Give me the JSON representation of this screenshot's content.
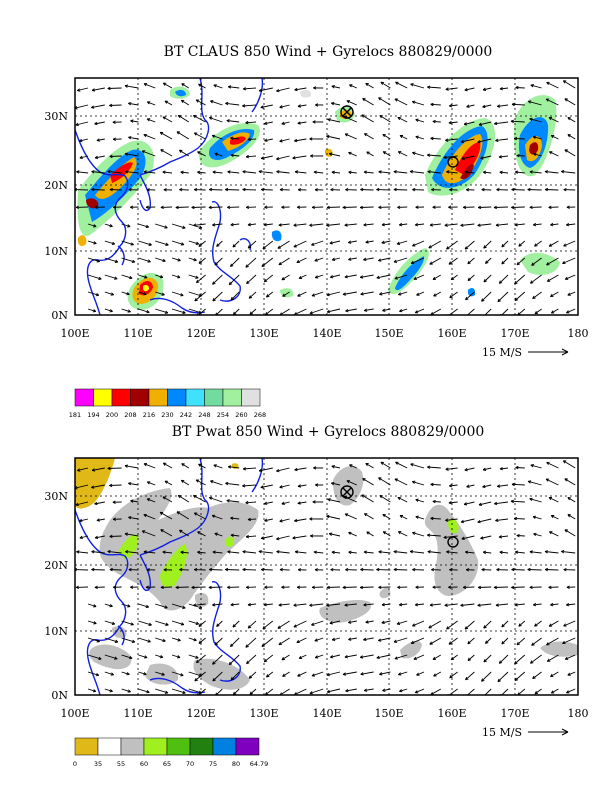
{
  "panels": [
    {
      "id": "top",
      "title": "BT CLAUS 850 Wind + Gyrelocs 880829/0000",
      "lat_labels": [
        "30N",
        "20N",
        "10N",
        "0N"
      ],
      "lon_labels": [
        "100E",
        "110E",
        "120E",
        "130E",
        "140E",
        "150E",
        "160E",
        "170E",
        "180"
      ],
      "vector_ref_label": "15 M/S",
      "colorbar_labels": [
        "181",
        "194",
        "200",
        "208",
        "216",
        "230",
        "242",
        "248",
        "254",
        "260",
        "268"
      ],
      "colorbar_colors": [
        "#ff00ff",
        "#ffff00",
        "#ff0000",
        "#a00000",
        "#f0b000",
        "#0088ff",
        "#40e0ff",
        "#70dca0",
        "#a0f0a0",
        "#e0e0e0"
      ]
    },
    {
      "id": "bottom",
      "title": "BT Pwat 850 Wind + Gyrelocs 880829/0000",
      "lat_labels": [
        "30N",
        "20N",
        "10N",
        "0N"
      ],
      "lon_labels": [
        "100E",
        "110E",
        "120E",
        "130E",
        "140E",
        "150E",
        "160E",
        "170E",
        "180"
      ],
      "vector_ref_label": "15 M/S",
      "colorbar_labels": [
        "0",
        "35",
        "55",
        "60",
        "65",
        "70",
        "75",
        "80",
        "64.79"
      ],
      "colorbar_colors": [
        "#e0b818",
        "#ffffff",
        "#c0c0c0",
        "#a0f020",
        "#50c010",
        "#208010",
        "#0080e0",
        "#8000c0"
      ]
    }
  ],
  "colors": {
    "coast": "#1020e0",
    "grid": "#000000"
  }
}
